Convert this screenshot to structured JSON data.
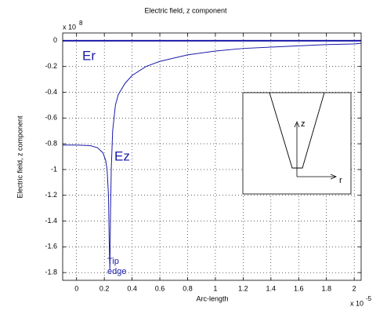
{
  "chart_data": {
    "type": "line",
    "title": "Electric field, z component",
    "x_label": "Arc-length",
    "y_label": "Electric field, z component",
    "x_exponent": "x 10",
    "x_exponent_power": "-5",
    "y_exponent": "x 10",
    "y_exponent_power": "8",
    "xlim": [
      -0.1,
      2.05
    ],
    "ylim": [
      -1.86,
      0.06
    ],
    "xticks": [
      0,
      0.2,
      0.4,
      0.6,
      0.8,
      1,
      1.2,
      1.4,
      1.6,
      1.8,
      2
    ],
    "yticks": [
      0,
      -0.2,
      -0.4,
      -0.6,
      -0.8,
      -1,
      -1.2,
      -1.4,
      -1.6,
      -1.8
    ],
    "grid": true,
    "series": [
      {
        "name": "Er",
        "color": "#1a1aa8",
        "x": [
          -0.1,
          2.05
        ],
        "values": [
          0,
          0
        ]
      },
      {
        "name": "Ez",
        "color": "#1a1aa8",
        "x": [
          -0.1,
          0,
          0.1,
          0.15,
          0.19,
          0.21,
          0.22,
          0.23,
          0.235,
          0.24,
          0.245,
          0.25,
          0.26,
          0.28,
          0.3,
          0.35,
          0.4,
          0.5,
          0.6,
          0.8,
          1,
          1.2,
          1.4,
          1.6,
          1.8,
          2,
          2.05
        ],
        "values": [
          -0.81,
          -0.81,
          -0.815,
          -0.83,
          -0.87,
          -0.93,
          -1.0,
          -1.2,
          -1.55,
          -1.78,
          -1.3,
          -1.0,
          -0.7,
          -0.5,
          -0.42,
          -0.33,
          -0.27,
          -0.2,
          -0.16,
          -0.11,
          -0.08,
          -0.06,
          -0.05,
          -0.04,
          -0.03,
          -0.025,
          -0.02
        ]
      }
    ],
    "annotations": [
      "Tip",
      "edge"
    ],
    "inset_labels": [
      "z",
      "r"
    ]
  }
}
